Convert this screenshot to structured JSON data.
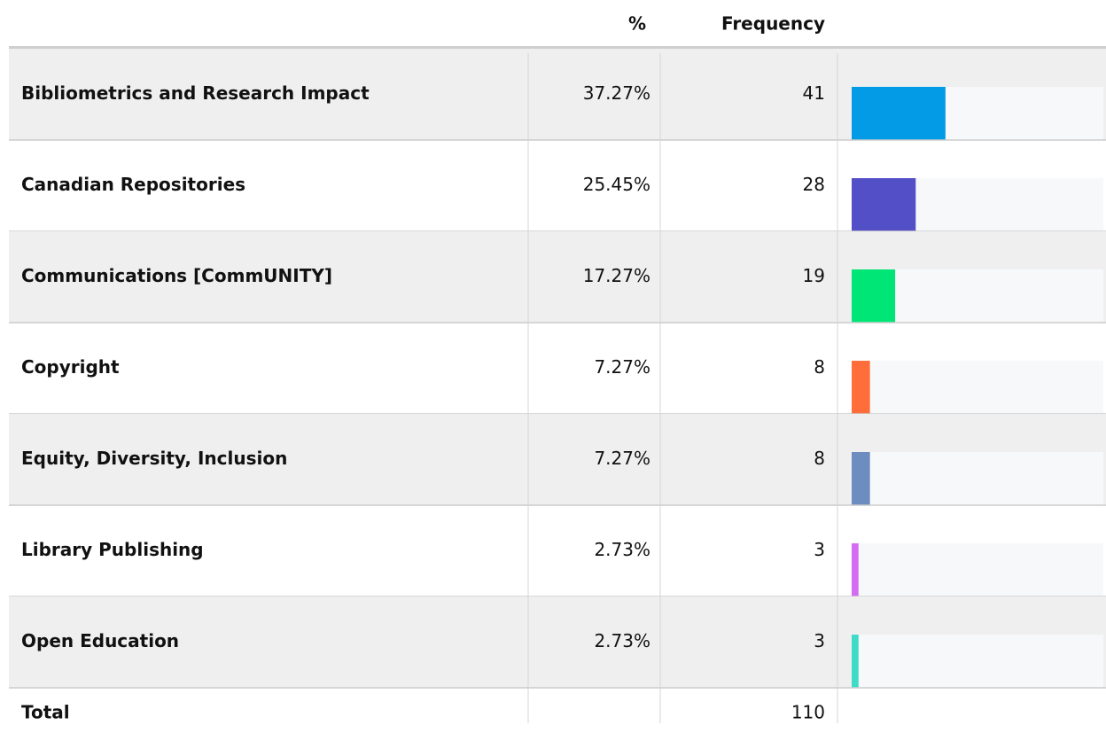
{
  "header": {
    "percent": "%",
    "frequency": "Frequency"
  },
  "table": {
    "rows": [
      {
        "label": "Bibliometrics and Research Impact",
        "percent": 37.27,
        "percent_label": "37.27%",
        "frequency": 41,
        "color": "#039be5"
      },
      {
        "label": "Canadian Repositories",
        "percent": 25.45,
        "percent_label": "25.45%",
        "frequency": 28,
        "color": "#534fc6"
      },
      {
        "label": "Communications [CommUNITY]",
        "percent": 17.27,
        "percent_label": "17.27%",
        "frequency": 19,
        "color": "#00e676"
      },
      {
        "label": "Copyright",
        "percent": 7.27,
        "percent_label": "7.27%",
        "frequency": 8,
        "color": "#ff6e3a"
      },
      {
        "label": "Equity, Diversity, Inclusion",
        "percent": 7.27,
        "percent_label": "7.27%",
        "frequency": 8,
        "color": "#6d8cbf"
      },
      {
        "label": "Library Publishing",
        "percent": 2.73,
        "percent_label": "2.73%",
        "frequency": 3,
        "color": "#d36cf0"
      },
      {
        "label": "Open Education",
        "percent": 2.73,
        "percent_label": "2.73%",
        "frequency": 3,
        "color": "#3ddbc8"
      }
    ],
    "total": {
      "label": "Total",
      "frequency": 110
    }
  }
}
